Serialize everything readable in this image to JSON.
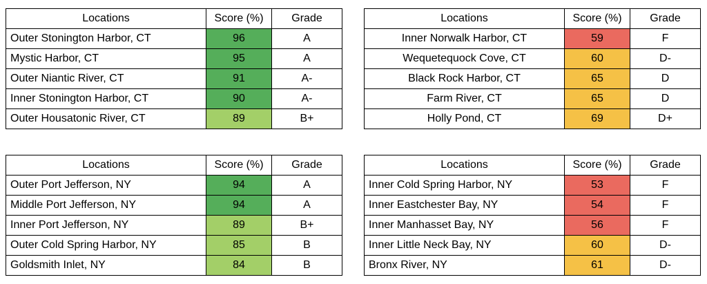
{
  "tables": [
    {
      "header": [
        "Locations",
        "Score (%)",
        "Grade"
      ],
      "rows": [
        {
          "location": "Outer Stonington Harbor, CT",
          "score": 96,
          "grade": "A",
          "color": "#55ae5a"
        },
        {
          "location": "Mystic Harbor, CT",
          "score": 95,
          "grade": "A",
          "color": "#55ae5a"
        },
        {
          "location": "Outer Niantic River, CT",
          "score": 91,
          "grade": "A-",
          "color": "#55ae5a"
        },
        {
          "location": "Inner Stonington Harbor, CT",
          "score": 90,
          "grade": "A-",
          "color": "#55ae5a"
        },
        {
          "location": "Outer Housatonic River, CT",
          "score": 89,
          "grade": "B+",
          "color": "#a3cf68"
        }
      ]
    },
    {
      "header": [
        "Locations",
        "Score (%)",
        "Grade"
      ],
      "rows": [
        {
          "location": "Inner Norwalk Harbor, CT",
          "score": 59,
          "grade": "F",
          "color": "#ea6a5f"
        },
        {
          "location": "Wequetequock Cove, CT",
          "score": 60,
          "grade": "D-",
          "color": "#f5c146"
        },
        {
          "location": "Black Rock Harbor, CT",
          "score": 65,
          "grade": "D",
          "color": "#f5c146"
        },
        {
          "location": "Farm River, CT",
          "score": 65,
          "grade": "D",
          "color": "#f5c146"
        },
        {
          "location": "Holly Pond, CT",
          "score": 69,
          "grade": "D+",
          "color": "#f5c146"
        }
      ]
    },
    {
      "header": [
        "Locations",
        "Score (%)",
        "Grade"
      ],
      "rows": [
        {
          "location": "Outer Port Jefferson, NY",
          "score": 94,
          "grade": "A",
          "color": "#55ae5a"
        },
        {
          "location": "Middle Port Jefferson, NY",
          "score": 94,
          "grade": "A",
          "color": "#55ae5a"
        },
        {
          "location": "Inner Port Jefferson, NY",
          "score": 89,
          "grade": "B+",
          "color": "#a3cf68"
        },
        {
          "location": "Outer Cold Spring Harbor, NY",
          "score": 85,
          "grade": "B",
          "color": "#a3cf68"
        },
        {
          "location": "Goldsmith Inlet, NY",
          "score": 84,
          "grade": "B",
          "color": "#a3cf68"
        }
      ]
    },
    {
      "header": [
        "Locations",
        "Score (%)",
        "Grade"
      ],
      "rows": [
        {
          "location": "Inner Cold Spring Harbor, NY",
          "score": 53,
          "grade": "F",
          "color": "#ea6a5f"
        },
        {
          "location": "Inner Eastchester Bay, NY",
          "score": 54,
          "grade": "F",
          "color": "#ea6a5f"
        },
        {
          "location": "Inner Manhasset Bay, NY",
          "score": 56,
          "grade": "F",
          "color": "#ea6a5f"
        },
        {
          "location": "Inner Little Neck Bay, NY",
          "score": 60,
          "grade": "D-",
          "color": "#f5c146"
        },
        {
          "location": "Bronx River, NY",
          "score": 61,
          "grade": "D-",
          "color": "#f5c146"
        }
      ]
    }
  ]
}
